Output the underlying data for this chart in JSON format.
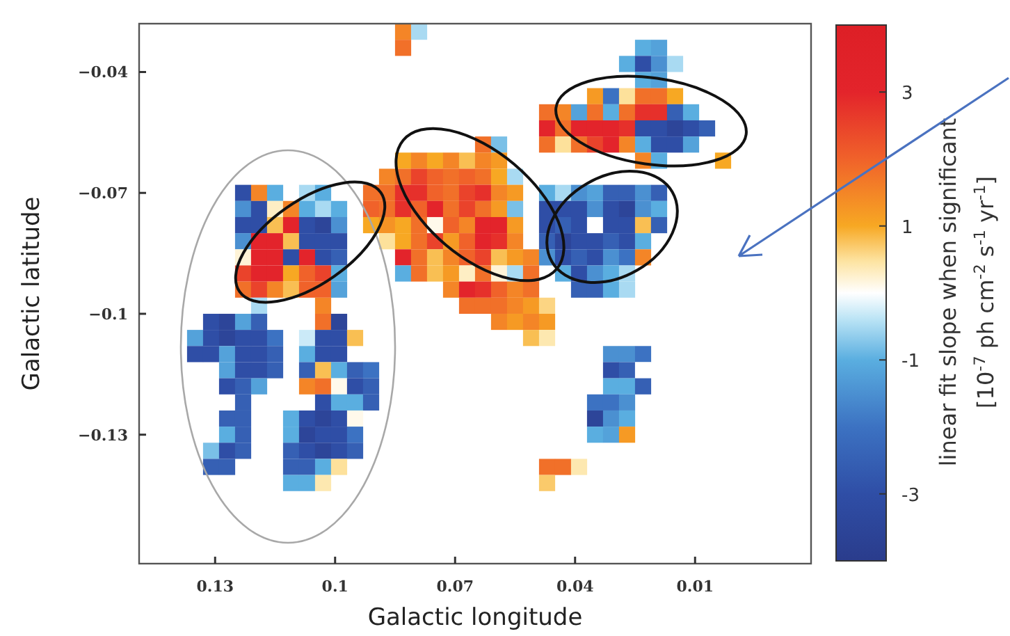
{
  "chart_data": {
    "type": "scatter",
    "marker": "square",
    "xlabel": "Galactic longitude",
    "ylabel": "Galactic latitude",
    "clabel": "linear fit slope when significant\n[10$^{-7}$ ph cm$^{-2}$ s$^{-1}$ yr$^{-1}$]",
    "xlim": [
      0.149,
      -0.019
    ],
    "ylim": [
      -0.162,
      -0.028
    ],
    "xticks": [
      0.13,
      0.1,
      0.07,
      0.04,
      0.01
    ],
    "yticks": [
      {
        "value": -0.04,
        "label": "−0.04"
      },
      {
        "value": -0.07,
        "label": "−0.07"
      },
      {
        "value": -0.1,
        "label": "−0.1"
      },
      {
        "value": -0.13,
        "label": "−0.13"
      }
    ],
    "clim": [
      -4,
      4
    ],
    "cticks": [
      3,
      1,
      -1,
      -3
    ],
    "x": [
      0.083,
      0.079,
      0.083,
      0.023,
      0.019,
      0.027,
      0.023,
      0.019,
      0.015,
      0.023,
      0.019,
      0.035,
      0.031,
      0.027,
      0.023,
      0.019,
      0.015,
      0.047,
      0.043,
      0.039,
      0.035,
      0.031,
      0.027,
      0.023,
      0.019,
      0.015,
      0.011,
      0.047,
      0.043,
      0.039,
      0.035,
      0.031,
      0.027,
      0.023,
      0.019,
      0.015,
      0.011,
      0.007,
      0.063,
      0.059,
      0.047,
      0.043,
      0.039,
      0.035,
      0.031,
      0.027,
      0.023,
      0.019,
      0.015,
      0.011,
      0.083,
      0.079,
      0.075,
      0.071,
      0.067,
      0.063,
      0.059,
      0.023,
      0.019,
      0.003,
      0.087,
      0.083,
      0.079,
      0.075,
      0.071,
      0.067,
      0.063,
      0.059,
      0.055,
      0.123,
      0.119,
      0.115,
      0.107,
      0.103,
      0.091,
      0.087,
      0.083,
      0.079,
      0.075,
      0.071,
      0.067,
      0.063,
      0.059,
      0.055,
      0.047,
      0.043,
      0.039,
      0.035,
      0.031,
      0.027,
      0.023,
      0.019,
      0.123,
      0.119,
      0.115,
      0.111,
      0.107,
      0.103,
      0.099,
      0.091,
      0.087,
      0.083,
      0.079,
      0.075,
      0.071,
      0.067,
      0.063,
      0.059,
      0.055,
      0.047,
      0.043,
      0.039,
      0.035,
      0.031,
      0.027,
      0.023,
      0.019,
      0.123,
      0.119,
      0.115,
      0.111,
      0.107,
      0.103,
      0.099,
      0.091,
      0.087,
      0.083,
      0.079,
      0.075,
      0.071,
      0.067,
      0.063,
      0.059,
      0.055,
      0.047,
      0.043,
      0.039,
      0.035,
      0.031,
      0.027,
      0.023,
      0.019,
      0.123,
      0.119,
      0.115,
      0.111,
      0.107,
      0.103,
      0.099,
      0.087,
      0.083,
      0.079,
      0.075,
      0.071,
      0.067,
      0.063,
      0.059,
      0.055,
      0.047,
      0.043,
      0.039,
      0.035,
      0.031,
      0.027,
      0.023,
      0.123,
      0.119,
      0.115,
      0.111,
      0.107,
      0.103,
      0.099,
      0.083,
      0.079,
      0.075,
      0.071,
      0.067,
      0.063,
      0.059,
      0.055,
      0.051,
      0.047,
      0.043,
      0.039,
      0.035,
      0.031,
      0.027,
      0.023,
      0.123,
      0.119,
      0.115,
      0.111,
      0.107,
      0.103,
      0.099,
      0.083,
      0.079,
      0.075,
      0.071,
      0.067,
      0.063,
      0.059,
      0.055,
      0.051,
      0.043,
      0.039,
      0.035,
      0.031,
      0.027,
      0.123,
      0.119,
      0.115,
      0.111,
      0.107,
      0.103,
      0.099,
      0.071,
      0.067,
      0.063,
      0.059,
      0.055,
      0.051,
      0.039,
      0.035,
      0.031,
      0.027,
      0.119,
      0.103,
      0.067,
      0.063,
      0.059,
      0.055,
      0.051,
      0.047,
      0.131,
      0.127,
      0.123,
      0.119,
      0.103,
      0.099,
      0.059,
      0.055,
      0.051,
      0.047,
      0.135,
      0.131,
      0.127,
      0.123,
      0.119,
      0.115,
      0.107,
      0.103,
      0.099,
      0.095,
      0.051,
      0.047,
      0.135,
      0.131,
      0.127,
      0.123,
      0.119,
      0.115,
      0.107,
      0.103,
      0.099,
      0.031,
      0.027,
      0.023,
      0.127,
      0.123,
      0.119,
      0.115,
      0.107,
      0.103,
      0.099,
      0.095,
      0.091,
      0.031,
      0.027,
      0.023,
      0.127,
      0.123,
      0.119,
      0.107,
      0.103,
      0.099,
      0.095,
      0.091,
      0.031,
      0.027,
      0.023,
      0.123,
      0.103,
      0.099,
      0.095,
      0.091,
      0.035,
      0.031,
      0.027,
      0.127,
      0.123,
      0.111,
      0.107,
      0.103,
      0.099,
      0.095,
      0.035,
      0.031,
      0.027,
      0.127,
      0.123,
      0.111,
      0.107,
      0.103,
      0.099,
      0.095,
      0.035,
      0.031,
      0.027,
      0.131,
      0.127,
      0.123,
      0.111,
      0.107,
      0.103,
      0.099,
      0.095,
      0.131,
      0.127,
      0.111,
      0.107,
      0.103,
      0.099,
      0.047,
      0.043,
      0.039,
      0.111,
      0.107,
      0.103,
      0.047
    ],
    "values": [
      -0.03,
      -0.03,
      -0.034,
      -0.034,
      -0.034,
      -0.038,
      -0.038,
      -0.038,
      -0.038,
      -0.042,
      -0.042,
      -0.046,
      -0.046,
      -0.046,
      -0.046,
      -0.046,
      -0.046,
      -0.05,
      -0.05,
      -0.05,
      -0.05,
      -0.05,
      -0.05,
      -0.05,
      -0.05,
      -0.05,
      -0.05,
      -0.054,
      -0.054,
      -0.054,
      -0.054,
      -0.054,
      -0.054,
      -0.054,
      -0.054,
      -0.054,
      -0.054,
      -0.054,
      -0.058,
      -0.058,
      -0.058,
      -0.058,
      -0.058,
      -0.058,
      -0.058,
      -0.058,
      -0.058,
      -0.058,
      -0.058,
      -0.058,
      -0.062,
      -0.062,
      -0.062,
      -0.062,
      -0.062,
      -0.062,
      -0.062,
      -0.062,
      -0.062,
      -0.062,
      -0.066,
      -0.066,
      -0.066,
      -0.066,
      -0.066,
      -0.066,
      -0.066,
      -0.066,
      -0.066,
      -0.07,
      -0.07,
      -0.07,
      -0.07,
      -0.07,
      -0.07,
      -0.07,
      -0.07,
      -0.07,
      -0.07,
      -0.07,
      -0.07,
      -0.07,
      -0.07,
      -0.07,
      -0.07,
      -0.07,
      -0.07,
      -0.07,
      -0.07,
      -0.07,
      -0.07,
      -0.07,
      -0.074,
      -0.074,
      -0.074,
      -0.074,
      -0.074,
      -0.074,
      -0.074,
      -0.074,
      -0.074,
      -0.074,
      -0.074,
      -0.074,
      -0.074,
      -0.074,
      -0.074,
      -0.074,
      -0.074,
      -0.074,
      -0.074,
      -0.074,
      -0.074,
      -0.074,
      -0.074,
      -0.074,
      -0.074,
      -0.078,
      -0.078,
      -0.078,
      -0.078,
      -0.078,
      -0.078,
      -0.078,
      -0.078,
      -0.078,
      -0.078,
      -0.078,
      -0.078,
      -0.078,
      -0.078,
      -0.078,
      -0.078,
      -0.078,
      -0.078,
      -0.078,
      -0.078,
      -0.078,
      -0.078,
      -0.078,
      -0.078,
      -0.078,
      -0.082,
      -0.082,
      -0.082,
      -0.082,
      -0.082,
      -0.082,
      -0.082,
      -0.082,
      -0.082,
      -0.082,
      -0.082,
      -0.082,
      -0.082,
      -0.082,
      -0.082,
      -0.082,
      -0.082,
      -0.082,
      -0.082,
      -0.082,
      -0.082,
      -0.082,
      -0.082,
      -0.086,
      -0.086,
      -0.086,
      -0.086,
      -0.086,
      -0.086,
      -0.086,
      -0.086,
      -0.086,
      -0.086,
      -0.086,
      -0.086,
      -0.086,
      -0.086,
      -0.086,
      -0.086,
      -0.086,
      -0.086,
      -0.086,
      -0.086,
      -0.086,
      -0.086,
      -0.086,
      -0.09,
      -0.09,
      -0.09,
      -0.09,
      -0.09,
      -0.09,
      -0.09,
      -0.09,
      -0.09,
      -0.09,
      -0.09,
      -0.09,
      -0.09,
      -0.09,
      -0.09,
      -0.09,
      -0.09,
      -0.09,
      -0.09,
      -0.09,
      -0.09,
      -0.094,
      -0.094,
      -0.094,
      -0.094,
      -0.094,
      -0.094,
      -0.094,
      -0.094,
      -0.094,
      -0.094,
      -0.094,
      -0.094,
      -0.094,
      -0.094,
      -0.094,
      -0.094,
      -0.094,
      -0.098,
      -0.098,
      -0.098,
      -0.098,
      -0.098,
      -0.098,
      -0.098,
      -0.098,
      -0.102,
      -0.102,
      -0.102,
      -0.102,
      -0.102,
      -0.102,
      -0.102,
      -0.102,
      -0.102,
      -0.102,
      -0.106,
      -0.106,
      -0.106,
      -0.106,
      -0.106,
      -0.106,
      -0.106,
      -0.106,
      -0.106,
      -0.106,
      -0.106,
      -0.106,
      -0.11,
      -0.11,
      -0.11,
      -0.11,
      -0.11,
      -0.11,
      -0.11,
      -0.11,
      -0.11,
      -0.11,
      -0.11,
      -0.11,
      -0.114,
      -0.114,
      -0.114,
      -0.114,
      -0.114,
      -0.114,
      -0.114,
      -0.114,
      -0.114,
      -0.114,
      -0.114,
      -0.114,
      -0.118,
      -0.118,
      -0.118,
      -0.118,
      -0.118,
      -0.118,
      -0.118,
      -0.118,
      -0.118,
      -0.118,
      -0.118,
      -0.122,
      -0.122,
      -0.122,
      -0.122,
      -0.122,
      -0.122,
      -0.122,
      -0.122,
      -0.126,
      -0.126,
      -0.126,
      -0.126,
      -0.126,
      -0.126,
      -0.126,
      -0.126,
      -0.126,
      -0.126,
      -0.13,
      -0.13,
      -0.13,
      -0.13,
      -0.13,
      -0.13,
      -0.13,
      -0.13,
      -0.13,
      -0.13,
      -0.134,
      -0.134,
      -0.134,
      -0.134,
      -0.134,
      -0.134,
      -0.134,
      -0.134,
      -0.138,
      -0.138,
      -0.138,
      -0.138,
      -0.138,
      -0.138,
      -0.138,
      -0.138,
      -0.138,
      -0.142,
      -0.142,
      -0.142,
      -0.142
    ],
    "cvalues": [
      1.5,
      -0.5,
      1.8,
      -1,
      -1.2,
      -1,
      -3,
      -1.5,
      -0.5,
      -1,
      -1.2,
      1.2,
      -2,
      0.5,
      1.8,
      1.8,
      1,
      1.8,
      1.5,
      -1.2,
      1.8,
      -1,
      1.8,
      2.8,
      2.8,
      -2.5,
      -1,
      3,
      1.8,
      3,
      3,
      3,
      2.8,
      -3,
      -3,
      -3.5,
      -3,
      -2.5,
      1.8,
      -0.8,
      1.8,
      0.5,
      1.8,
      2.5,
      3,
      1.5,
      -1,
      -3,
      -3,
      -1.2,
      1,
      1.5,
      1,
      1.5,
      0.8,
      1.5,
      1.2,
      1.5,
      -1,
      1,
      1.5,
      1.8,
      2.5,
      2,
      1.8,
      2,
      1.8,
      1,
      -0.5,
      -3,
      1.5,
      -1,
      -0.5,
      -1,
      1.8,
      1.8,
      2.8,
      2.8,
      2,
      1.8,
      2.5,
      2.8,
      1.5,
      1.2,
      -1,
      -0.5,
      -1.5,
      -1.2,
      -2.5,
      -2.5,
      -1.5,
      -2.5,
      -1.5,
      -3,
      0.3,
      1.5,
      -1,
      -0.5,
      -1,
      2,
      1.8,
      2.8,
      2,
      3,
      1.8,
      2.5,
      1.8,
      1.2,
      -0.8,
      -3,
      -3,
      -3,
      -1.5,
      -3,
      -3.5,
      -1.5,
      -1,
      -3,
      -3,
      0.8,
      3,
      -3,
      -3.5,
      -1.5,
      1,
      1.3,
      1,
      1.8,
      0.1,
      2,
      1.5,
      3,
      3,
      1.2,
      -3,
      -2.5,
      -3,
      0,
      -3,
      -3,
      0.8,
      -2.5,
      -1.5,
      3,
      3,
      0.8,
      -3,
      -3,
      -3,
      0.5,
      1,
      1.8,
      2.5,
      1.2,
      2,
      3,
      2.8,
      1.5,
      -2.5,
      -3.5,
      -3,
      -3,
      -2.5,
      -3,
      -1,
      0.2,
      3,
      3,
      -3,
      3,
      -3,
      -2.5,
      3,
      1.8,
      0.8,
      1.5,
      2,
      2.5,
      0.8,
      1.2,
      1.5,
      -1.5,
      -3,
      -2.5,
      -3,
      -1.5,
      -2,
      1.5,
      2.5,
      3,
      3,
      1,
      2,
      2.5,
      -1,
      -1,
      1.8,
      0.8,
      1.2,
      0.3,
      1.8,
      0.2,
      -0.5,
      1.8,
      -1,
      -3,
      -1.5,
      -1,
      -0.5,
      1.8,
      2.5,
      1.5,
      0.8,
      2,
      2,
      -1.2,
      1.5,
      3,
      2.8,
      2,
      1.5,
      1.8,
      -2.5,
      -2.5,
      -1,
      -0.5,
      -0.5,
      1.5,
      1.8,
      1.8,
      1.8,
      1.5,
      1.2,
      0.6,
      -3,
      -3.5,
      -1.2,
      -2.5,
      1.8,
      -3.5,
      1.5,
      1.2,
      1.5,
      1.2,
      -1.2,
      -3,
      -3.5,
      -3,
      -3,
      -2,
      -0.3,
      -3,
      -3,
      0.8,
      0.8,
      0.4,
      -3,
      -3,
      -1.2,
      -3,
      -3,
      -2.5,
      -1,
      -3,
      -3,
      -1.5,
      -1.5,
      -2,
      -1.2,
      -3,
      -3,
      -2.5,
      -2.5,
      0.8,
      -1,
      -2.5,
      -2,
      -3,
      -2.5,
      0,
      -3,
      -2.5,
      -1.2,
      1.5,
      1.8,
      0.1,
      -3,
      -2.5,
      -1,
      -1,
      -2.5,
      -2.5,
      -3,
      -1,
      -1,
      -2.5,
      -2,
      -2,
      -1.5,
      -2.5,
      -2.5,
      -1,
      -3,
      -3.5,
      -3,
      0.1,
      -3.5,
      -1.5,
      -1,
      -1,
      -2.5,
      -1,
      -3.5,
      -3,
      -3,
      -2,
      -1,
      -1.2,
      1.2,
      -0.8,
      -3,
      -2.5,
      -2.5,
      -3,
      -3.5,
      -3,
      -2.5,
      -2.5,
      -2.5,
      -2.5,
      -2.5,
      -1,
      0.5,
      1.8,
      1.8,
      0.4,
      -1,
      -1,
      0.4,
      0.7
    ]
  }
}
